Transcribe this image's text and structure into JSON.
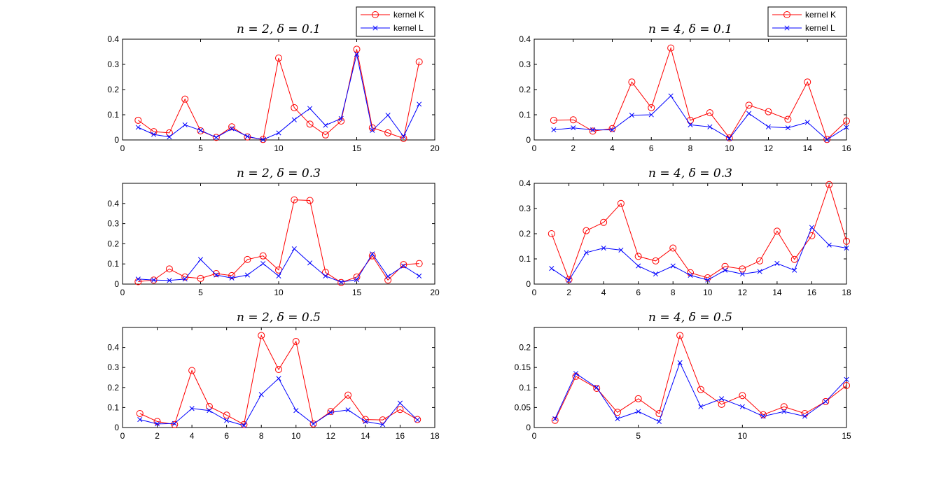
{
  "colors": {
    "kernel_k": "#ff0000",
    "kernel_l": "#0000ff"
  },
  "chart_data": [
    {
      "type": "line",
      "title": "n = 2, δ = 0.1",
      "xlim": [
        0,
        20
      ],
      "ylim": [
        0,
        0.4
      ],
      "xticks": [
        0,
        5,
        10,
        15,
        20
      ],
      "xtick_labels": [
        "0",
        "5",
        "10",
        "15",
        "20"
      ],
      "yticks": [
        0,
        0.1,
        0.2,
        0.3,
        0.4
      ],
      "ytick_labels": [
        "0",
        "0.1",
        "0.2",
        "0.3",
        "0.4"
      ],
      "legend": [
        "kernel K",
        "kernel L"
      ],
      "x": [
        1,
        2,
        3,
        4,
        5,
        6,
        7,
        8,
        9,
        10,
        11,
        12,
        13,
        14,
        15,
        16,
        17,
        18,
        19
      ],
      "series": [
        {
          "name": "kernel K",
          "marker": "circle",
          "values": [
            0.078,
            0.033,
            0.028,
            0.162,
            0.036,
            0.01,
            0.052,
            0.012,
            0.002,
            0.325,
            0.128,
            0.063,
            0.02,
            0.075,
            0.36,
            0.048,
            0.028,
            0.006,
            0.31
          ]
        },
        {
          "name": "kernel L",
          "marker": "x",
          "values": [
            0.05,
            0.022,
            0.012,
            0.06,
            0.038,
            0.01,
            0.045,
            0.014,
            0.001,
            0.028,
            0.08,
            0.125,
            0.058,
            0.085,
            0.34,
            0.038,
            0.098,
            0.014,
            0.142
          ]
        }
      ]
    },
    {
      "type": "line",
      "title": "n = 4, δ = 0.1",
      "xlim": [
        0,
        16
      ],
      "ylim": [
        0,
        0.4
      ],
      "xticks": [
        0,
        2,
        4,
        6,
        8,
        10,
        12,
        14,
        16
      ],
      "xtick_labels": [
        "0",
        "2",
        "4",
        "6",
        "8",
        "10",
        "12",
        "14",
        "16"
      ],
      "yticks": [
        0,
        0.1,
        0.2,
        0.3,
        0.4
      ],
      "ytick_labels": [
        "0",
        "0.1",
        "0.2",
        "0.3",
        "0.4"
      ],
      "legend": [
        "kernel K",
        "kernel L"
      ],
      "x": [
        1,
        2,
        3,
        4,
        5,
        6,
        7,
        8,
        9,
        10,
        11,
        12,
        13,
        14,
        15,
        16
      ],
      "series": [
        {
          "name": "kernel K",
          "marker": "circle",
          "values": [
            0.078,
            0.08,
            0.035,
            0.045,
            0.23,
            0.128,
            0.365,
            0.078,
            0.108,
            0.008,
            0.138,
            0.112,
            0.082,
            0.23,
            0.002,
            0.075
          ]
        },
        {
          "name": "kernel L",
          "marker": "x",
          "values": [
            0.04,
            0.048,
            0.04,
            0.04,
            0.098,
            0.1,
            0.175,
            0.06,
            0.052,
            0.006,
            0.105,
            0.052,
            0.048,
            0.07,
            0.001,
            0.05
          ]
        }
      ]
    },
    {
      "type": "line",
      "title": "n = 2, δ = 0.3",
      "xlim": [
        0,
        20
      ],
      "ylim": [
        0,
        0.5
      ],
      "xticks": [
        0,
        5,
        10,
        15,
        20
      ],
      "xtick_labels": [
        "0",
        "5",
        "10",
        "15",
        "20"
      ],
      "yticks": [
        0,
        0.1,
        0.2,
        0.3,
        0.4
      ],
      "ytick_labels": [
        "0",
        "0.1",
        "0.2",
        "0.3",
        "0.4"
      ],
      "x": [
        1,
        2,
        3,
        4,
        5,
        6,
        7,
        8,
        9,
        10,
        11,
        12,
        13,
        14,
        15,
        16,
        17,
        18,
        19
      ],
      "series": [
        {
          "name": "kernel K",
          "marker": "circle",
          "values": [
            0.012,
            0.02,
            0.075,
            0.035,
            0.028,
            0.052,
            0.042,
            0.122,
            0.14,
            0.07,
            0.418,
            0.415,
            0.058,
            0.008,
            0.035,
            0.14,
            0.02,
            0.097,
            0.102
          ]
        },
        {
          "name": "kernel L",
          "marker": "x",
          "values": [
            0.025,
            0.02,
            0.018,
            0.025,
            0.122,
            0.045,
            0.03,
            0.045,
            0.102,
            0.04,
            0.175,
            0.105,
            0.04,
            0.01,
            0.022,
            0.15,
            0.038,
            0.09,
            0.04
          ]
        }
      ]
    },
    {
      "type": "line",
      "title": "n = 4, δ = 0.3",
      "xlim": [
        0,
        18
      ],
      "ylim": [
        0,
        0.4
      ],
      "xticks": [
        0,
        2,
        4,
        6,
        8,
        10,
        12,
        14,
        16,
        18
      ],
      "xtick_labels": [
        "0",
        "2",
        "4",
        "6",
        "8",
        "10",
        "12",
        "14",
        "16",
        "18"
      ],
      "yticks": [
        0,
        0.1,
        0.2,
        0.3,
        0.4
      ],
      "ytick_labels": [
        "0",
        "0.1",
        "0.2",
        "0.3",
        "0.4"
      ],
      "x": [
        1,
        2,
        3,
        4,
        5,
        6,
        7,
        8,
        9,
        10,
        11,
        12,
        13,
        14,
        15,
        16,
        17,
        18
      ],
      "series": [
        {
          "name": "kernel K",
          "marker": "circle",
          "values": [
            0.2,
            0.018,
            0.212,
            0.245,
            0.32,
            0.11,
            0.092,
            0.143,
            0.045,
            0.025,
            0.07,
            0.06,
            0.092,
            0.21,
            0.098,
            0.192,
            0.395,
            0.17
          ]
        },
        {
          "name": "kernel L",
          "marker": "x",
          "values": [
            0.062,
            0.015,
            0.125,
            0.143,
            0.135,
            0.072,
            0.04,
            0.072,
            0.035,
            0.016,
            0.055,
            0.04,
            0.05,
            0.082,
            0.055,
            0.225,
            0.155,
            0.143
          ]
        }
      ]
    },
    {
      "type": "line",
      "title": "n = 2, δ = 0.5",
      "xlim": [
        0,
        18
      ],
      "ylim": [
        0,
        0.5
      ],
      "xticks": [
        0,
        2,
        4,
        6,
        8,
        10,
        12,
        14,
        16,
        18
      ],
      "xtick_labels": [
        "0",
        "2",
        "4",
        "6",
        "8",
        "10",
        "12",
        "14",
        "16",
        "18"
      ],
      "yticks": [
        0,
        0.1,
        0.2,
        0.3,
        0.4
      ],
      "ytick_labels": [
        "0",
        "0.1",
        "0.2",
        "0.3",
        "0.4"
      ],
      "x": [
        1,
        2,
        3,
        4,
        5,
        6,
        7,
        8,
        9,
        10,
        11,
        12,
        13,
        14,
        15,
        16,
        17
      ],
      "series": [
        {
          "name": "kernel K",
          "marker": "circle",
          "values": [
            0.07,
            0.03,
            0.015,
            0.285,
            0.105,
            0.062,
            0.015,
            0.46,
            0.29,
            0.43,
            0.018,
            0.08,
            0.162,
            0.04,
            0.038,
            0.09,
            0.04
          ]
        },
        {
          "name": "kernel L",
          "marker": "x",
          "values": [
            0.04,
            0.018,
            0.02,
            0.095,
            0.085,
            0.035,
            0.01,
            0.165,
            0.245,
            0.085,
            0.018,
            0.075,
            0.088,
            0.03,
            0.015,
            0.122,
            0.038
          ]
        }
      ]
    },
    {
      "type": "line",
      "title": "n = 4, δ = 0.5",
      "xlim": [
        0,
        15
      ],
      "ylim": [
        0,
        0.25
      ],
      "xticks": [
        0,
        5,
        10,
        15
      ],
      "xtick_labels": [
        "0",
        "5",
        "10",
        "15"
      ],
      "yticks": [
        0,
        0.05,
        0.1,
        0.15,
        0.2
      ],
      "ytick_labels": [
        "0",
        "0.05",
        "0.1",
        "0.15",
        "0.2"
      ],
      "x": [
        1,
        2,
        3,
        4,
        5,
        6,
        7,
        8,
        9,
        10,
        11,
        12,
        13,
        14,
        15
      ],
      "series": [
        {
          "name": "kernel K",
          "marker": "circle",
          "values": [
            0.018,
            0.128,
            0.098,
            0.038,
            0.072,
            0.035,
            0.23,
            0.095,
            0.058,
            0.08,
            0.032,
            0.052,
            0.035,
            0.065,
            0.105
          ]
        },
        {
          "name": "kernel L",
          "marker": "x",
          "values": [
            0.022,
            0.135,
            0.1,
            0.022,
            0.04,
            0.015,
            0.162,
            0.052,
            0.072,
            0.052,
            0.028,
            0.04,
            0.028,
            0.065,
            0.12
          ]
        }
      ]
    }
  ]
}
